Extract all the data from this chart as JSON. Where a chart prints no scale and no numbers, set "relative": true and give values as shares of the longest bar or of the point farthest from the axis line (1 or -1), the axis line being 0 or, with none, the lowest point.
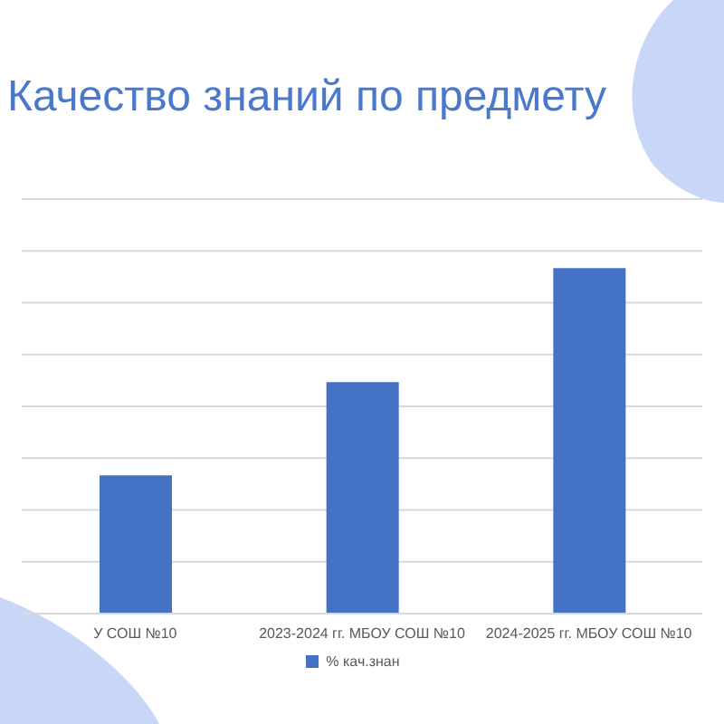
{
  "chart_data": {
    "type": "bar",
    "title": "Качество знаний по предмету",
    "categories": [
      "У СОШ №10",
      "2023-2024 гг. МБОУ СОШ №10",
      "2024-2025 гг. МБОУ СОШ №10"
    ],
    "series": [
      {
        "name": "% кач.знан",
        "color": "#4472c4",
        "values": [
          0.4,
          0.67,
          1
        ]
      }
    ],
    "relative": true,
    "grid": "y",
    "legend": "bottom"
  }
}
